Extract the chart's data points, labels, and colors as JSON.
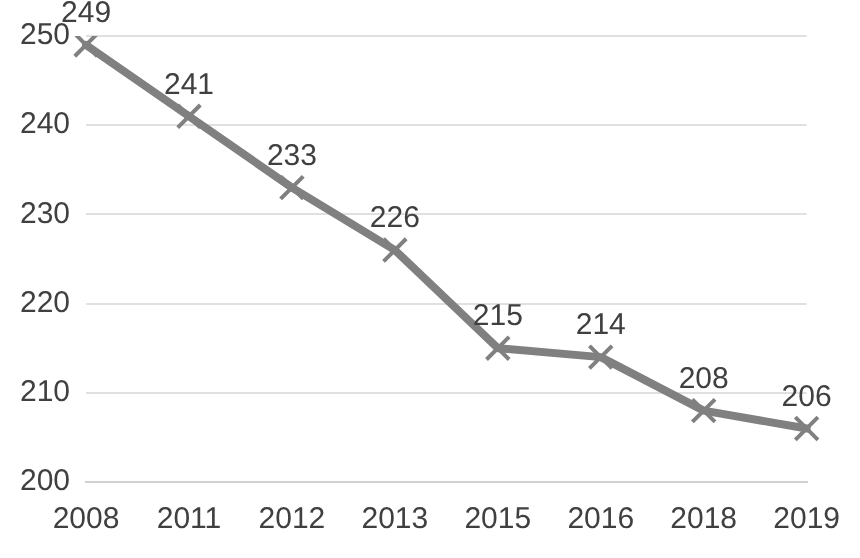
{
  "chart_data": {
    "type": "line",
    "categories": [
      "2008",
      "2011",
      "2012",
      "2013",
      "2015",
      "2016",
      "2018",
      "2019"
    ],
    "series": [
      {
        "color": "#808080",
        "values": [
          249,
          241,
          233,
          226,
          215,
          214,
          208,
          206
        ]
      }
    ],
    "ylim": [
      200,
      250
    ],
    "yticks": [
      200,
      210,
      220,
      230,
      240,
      250
    ],
    "grid": "y",
    "legend": false,
    "marker": "cross",
    "line_style": "solid",
    "data_labels": true
  }
}
